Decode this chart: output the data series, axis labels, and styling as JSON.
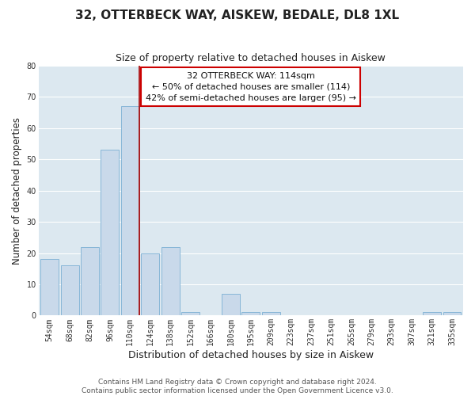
{
  "title": "32, OTTERBECK WAY, AISKEW, BEDALE, DL8 1XL",
  "subtitle": "Size of property relative to detached houses in Aiskew",
  "xlabel": "Distribution of detached houses by size in Aiskew",
  "ylabel": "Number of detached properties",
  "bar_labels": [
    "54sqm",
    "68sqm",
    "82sqm",
    "96sqm",
    "110sqm",
    "124sqm",
    "138sqm",
    "152sqm",
    "166sqm",
    "180sqm",
    "195sqm",
    "209sqm",
    "223sqm",
    "237sqm",
    "251sqm",
    "265sqm",
    "279sqm",
    "293sqm",
    "307sqm",
    "321sqm",
    "335sqm"
  ],
  "bar_values": [
    18,
    16,
    22,
    53,
    67,
    20,
    22,
    1,
    0,
    7,
    1,
    1,
    0,
    0,
    0,
    0,
    0,
    0,
    0,
    1,
    1
  ],
  "bar_color": "#c9d9ea",
  "bar_edgecolor": "#7bafd4",
  "property_line_color": "#aa0000",
  "annotation_line1": "32 OTTERBECK WAY: 114sqm",
  "annotation_line2": "← 50% of detached houses are smaller (114)",
  "annotation_line3": "42% of semi-detached houses are larger (95) →",
  "annotation_box_edgecolor": "#cc0000",
  "ylim": [
    0,
    80
  ],
  "yticks": [
    0,
    10,
    20,
    30,
    40,
    50,
    60,
    70,
    80
  ],
  "footer1": "Contains HM Land Registry data © Crown copyright and database right 2024.",
  "footer2": "Contains public sector information licensed under the Open Government Licence v3.0.",
  "plot_bg_color": "#dce8f0",
  "fig_bg_color": "#ffffff",
  "grid_color": "#ffffff",
  "title_fontsize": 11,
  "subtitle_fontsize": 9,
  "xlabel_fontsize": 9,
  "ylabel_fontsize": 8.5,
  "tick_fontsize": 7,
  "annotation_fontsize": 8,
  "footer_fontsize": 6.5
}
